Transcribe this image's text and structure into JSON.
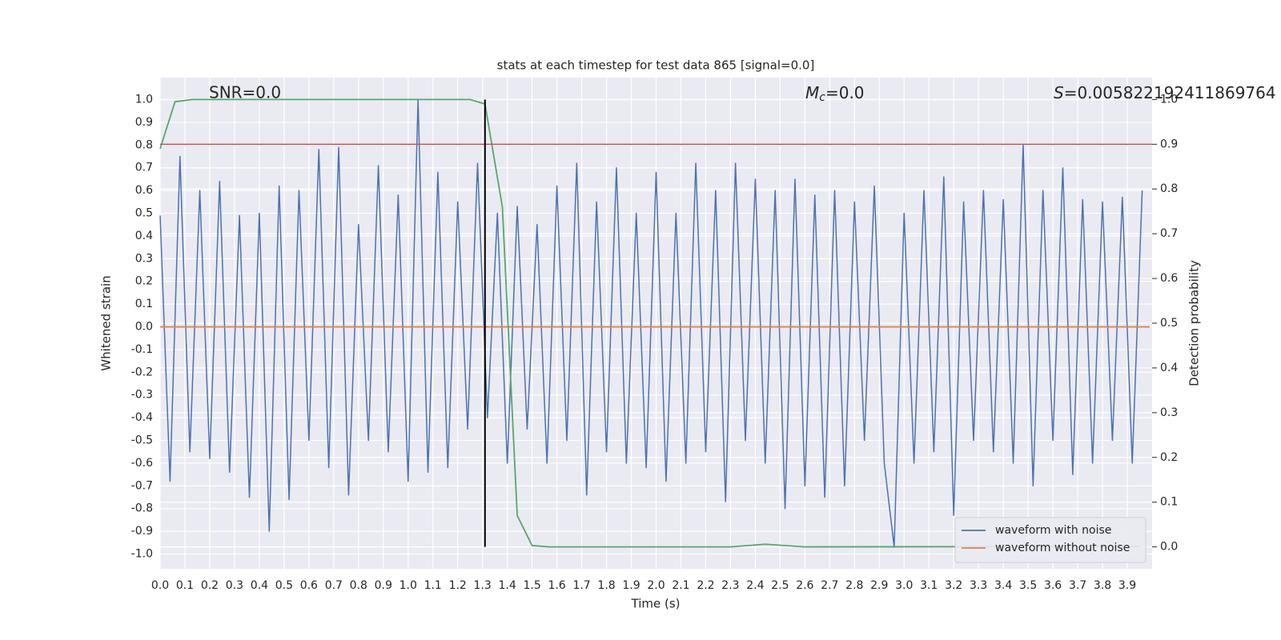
{
  "chart_data": {
    "type": "line",
    "title": "stats at each timestep for test data 865 [signal=0.0]",
    "xlabel": "Time (s)",
    "ylabel": "Whitened strain",
    "y2label": "Detection probability",
    "annotations": {
      "snr": "SNR=0.0",
      "mc": [
        "M",
        "c",
        "=0.0"
      ],
      "s": [
        "S",
        "=0.005822192411869764"
      ]
    },
    "xlim": [
      0,
      4.0
    ],
    "ylim": [
      -1.065,
      1.097
    ],
    "y2lim": [
      -0.049,
      1.049
    ],
    "xticks": [
      {
        "value": 0,
        "label": "0.0"
      },
      0.1,
      0.2,
      0.3,
      0.4,
      0.5,
      0.6,
      0.7,
      0.8,
      0.9,
      {
        "value": 1,
        "label": "1.0"
      },
      1.1,
      1.2,
      1.3,
      1.4,
      1.5,
      1.6,
      1.7,
      1.8,
      1.9,
      {
        "value": 2,
        "label": "2.0"
      },
      2.1,
      2.2,
      2.3,
      2.4,
      2.5,
      2.6,
      2.7,
      2.8,
      2.9,
      {
        "value": 3,
        "label": "3.0"
      },
      3.1,
      3.2,
      3.3,
      3.4,
      3.5,
      3.6,
      3.7,
      3.8,
      3.9
    ],
    "yticks": [
      {
        "value": -1,
        "label": "-1.0"
      },
      -0.9,
      -0.8,
      -0.7,
      -0.6,
      -0.5,
      -0.4,
      -0.3,
      -0.2,
      -0.1,
      {
        "value": 0,
        "label": "0.0"
      },
      0.1,
      0.2,
      0.3,
      0.4,
      0.5,
      0.6,
      0.7,
      0.8,
      0.9,
      {
        "value": 1,
        "label": "1.0"
      }
    ],
    "y2ticks": [
      {
        "value": 0,
        "label": "0.0"
      },
      0.1,
      0.2,
      0.3,
      0.4,
      0.5,
      0.6,
      0.7,
      0.8,
      0.9,
      {
        "value": 1,
        "label": "1.0"
      }
    ],
    "grid": true,
    "legend": "lower right",
    "threshold_y2": 0.9,
    "threshold_color": "#c44e52",
    "vline": {
      "x": 1.31,
      "y2": [
        0,
        1
      ],
      "color": "#000000"
    },
    "series": [
      {
        "name": "waveform with noise",
        "color": "#4c72b0",
        "x": [
          0,
          0.04,
          0.08,
          0.12,
          0.16,
          0.2,
          0.24,
          0.28,
          0.32,
          0.36,
          0.4,
          0.44,
          0.48,
          0.52,
          0.56,
          0.6,
          0.64,
          0.68,
          0.72,
          0.76,
          0.8,
          0.84,
          0.88,
          0.92,
          0.96,
          1,
          1.04,
          1.08,
          1.12,
          1.16,
          1.2,
          1.24,
          1.28,
          1.32,
          1.36,
          1.4,
          1.44,
          1.48,
          1.52,
          1.56,
          1.6,
          1.64,
          1.68,
          1.72,
          1.76,
          1.8,
          1.84,
          1.88,
          1.92,
          1.96,
          2,
          2.04,
          2.08,
          2.12,
          2.16,
          2.2,
          2.24,
          2.28,
          2.32,
          2.36,
          2.4,
          2.44,
          2.48,
          2.52,
          2.56,
          2.6,
          2.64,
          2.68,
          2.72,
          2.76,
          2.8,
          2.84,
          2.88,
          2.92,
          2.96,
          3,
          3.04,
          3.08,
          3.12,
          3.16,
          3.2,
          3.24,
          3.28,
          3.32,
          3.36,
          3.4,
          3.44,
          3.48,
          3.52,
          3.56,
          3.6,
          3.64,
          3.68,
          3.72,
          3.76,
          3.8,
          3.84,
          3.88,
          3.92,
          3.96
        ],
        "values": [
          0.49,
          -0.68,
          0.75,
          -0.55,
          0.6,
          -0.58,
          0.64,
          -0.64,
          0.49,
          -0.75,
          0.5,
          -0.9,
          0.62,
          -0.76,
          0.6,
          -0.5,
          0.78,
          -0.62,
          0.79,
          -0.74,
          0.45,
          -0.5,
          0.71,
          -0.55,
          0.58,
          -0.68,
          1.0,
          -0.64,
          0.68,
          -0.62,
          0.55,
          -0.45,
          0.72,
          -0.4,
          0.5,
          -0.6,
          0.53,
          -0.45,
          0.45,
          -0.6,
          0.62,
          -0.5,
          0.72,
          -0.74,
          0.55,
          -0.55,
          0.7,
          -0.6,
          0.5,
          -0.62,
          0.68,
          -0.68,
          0.5,
          -0.6,
          0.72,
          -0.55,
          0.6,
          -0.77,
          0.72,
          -0.5,
          0.65,
          -0.6,
          0.6,
          -0.8,
          0.65,
          -0.7,
          0.58,
          -0.75,
          0.6,
          -0.7,
          0.55,
          -0.5,
          0.62,
          -0.6,
          -0.97,
          0.5,
          -0.6,
          0.6,
          -0.55,
          0.66,
          -0.83,
          0.55,
          -0.5,
          0.6,
          -0.55,
          0.56,
          -0.6,
          0.8,
          -0.7,
          0.6,
          -0.5,
          0.7,
          -0.65,
          0.56,
          -0.6,
          0.55,
          -0.5,
          0.57,
          -0.6,
          0.6
        ]
      },
      {
        "name": "waveform without noise",
        "color": "#dd8452",
        "x": [
          0,
          3.99
        ],
        "values": [
          0,
          0
        ]
      },
      {
        "color": "#55a868",
        "axis": "y2",
        "x": [
          0,
          0.06,
          0.13,
          1.25,
          1.31,
          1.38,
          1.44,
          1.5,
          1.57,
          2.3,
          2.44,
          2.6,
          3.95
        ],
        "values": [
          0.89,
          0.995,
          1.0,
          1.0,
          0.99,
          0.76,
          0.07,
          0.003,
          0,
          0,
          0.006,
          0,
          0.001
        ]
      }
    ]
  }
}
